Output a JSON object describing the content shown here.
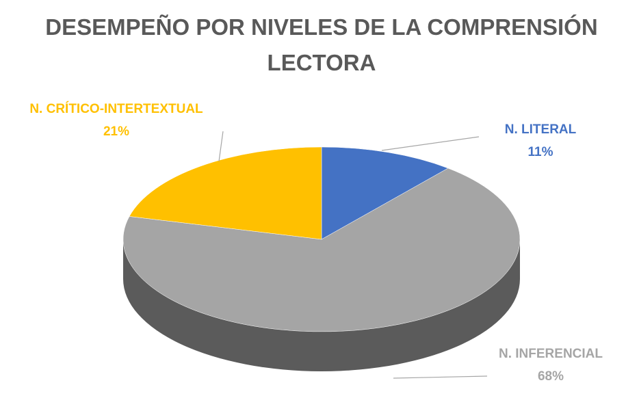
{
  "chart_data": {
    "type": "pie",
    "title": "DESEMPEÑO POR NIVELES DE LA COMPRENSIÓN LECTORA",
    "categories": [
      "N. LITERAL",
      "N. INFERENCIAL",
      "N. CRÍTICO-INTERTEXTUAL"
    ],
    "values": [
      11,
      68,
      21
    ],
    "value_labels": [
      "11%",
      "68%",
      "21%"
    ],
    "colors": [
      "#4472c4",
      "#a5a5a5",
      "#ffc000"
    ]
  }
}
